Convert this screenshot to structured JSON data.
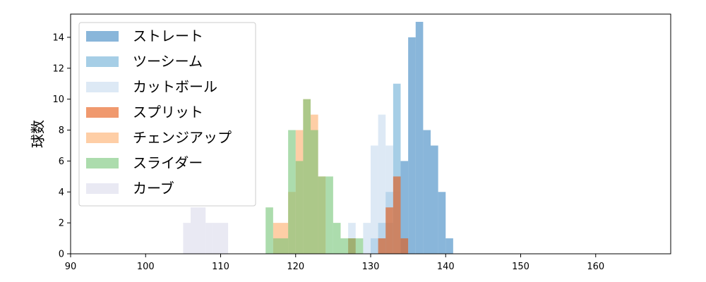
{
  "chart_data": {
    "type": "histogram",
    "title": "",
    "xlabel": "",
    "ylabel": "球数",
    "xlim": [
      90,
      170
    ],
    "ylim": [
      0,
      15.5
    ],
    "xticks": [
      90,
      100,
      110,
      120,
      130,
      140,
      150,
      160
    ],
    "yticks": [
      0,
      2,
      4,
      6,
      8,
      10,
      12,
      14
    ],
    "grid": false,
    "legend_position": "upper-left",
    "series": [
      {
        "name": "ストレート",
        "color": "#3b86c2",
        "opacity": 0.6,
        "bin_width": 1,
        "x": [
          131,
          132,
          133,
          134,
          135,
          136,
          137,
          138,
          139,
          140
        ],
        "values": [
          1,
          2,
          4,
          6,
          14,
          15,
          8,
          7,
          4,
          1
        ]
      },
      {
        "name": "ツーシーム",
        "color": "#6aaed6",
        "opacity": 0.6,
        "bin_width": 1,
        "x": [
          130,
          131,
          132,
          133
        ],
        "values": [
          1,
          2,
          4,
          11
        ]
      },
      {
        "name": "カットボール",
        "color": "#c6dbef",
        "opacity": 0.6,
        "bin_width": 1,
        "x": [
          127,
          129,
          130,
          131,
          132,
          133
        ],
        "values": [
          2,
          2,
          7,
          9,
          7,
          4
        ]
      },
      {
        "name": "スプリット",
        "color": "#e6550d",
        "opacity": 0.6,
        "bin_width": 1,
        "x": [
          127,
          131,
          132,
          133,
          134
        ],
        "values": [
          1,
          1,
          3,
          5,
          1
        ]
      },
      {
        "name": "チェンジアップ",
        "color": "#fdae6b",
        "opacity": 0.6,
        "bin_width": 1,
        "x": [
          117,
          118,
          119,
          120,
          121,
          122,
          123
        ],
        "values": [
          2,
          2,
          4,
          8,
          10,
          9,
          5
        ]
      },
      {
        "name": "スライダー",
        "color": "#74c476",
        "opacity": 0.6,
        "bin_width": 1,
        "x": [
          116,
          117,
          118,
          119,
          120,
          121,
          122,
          123,
          124,
          125,
          126,
          127,
          128
        ],
        "values": [
          3,
          1,
          1,
          8,
          6,
          10,
          8,
          5,
          5,
          2,
          1,
          1,
          1
        ]
      },
      {
        "name": "カーブ",
        "color": "#dadaeb",
        "opacity": 0.6,
        "bin_width": 1,
        "x": [
          105,
          106,
          107,
          108,
          109,
          110
        ],
        "values": [
          2,
          3,
          3,
          2,
          2,
          2
        ]
      }
    ]
  }
}
